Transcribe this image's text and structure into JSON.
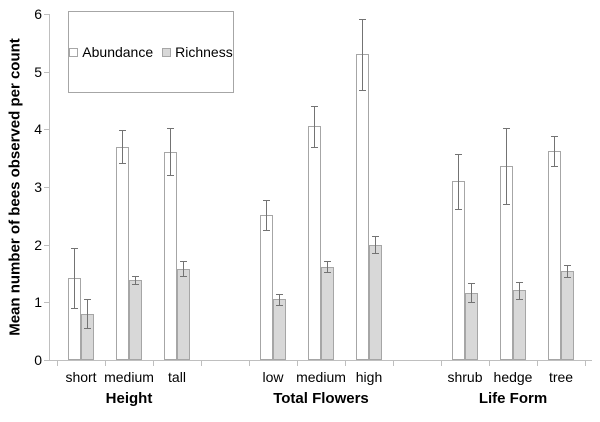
{
  "chart_data": {
    "type": "bar",
    "title": "",
    "ylabel": "Mean number of bees observed per count",
    "xlabel": "",
    "ylim": [
      0,
      6
    ],
    "yticks": [
      0,
      1,
      2,
      3,
      4,
      5,
      6
    ],
    "grid": false,
    "legend_position": "top-left",
    "series_names": [
      "Abundance",
      "Richness"
    ],
    "groups": [
      {
        "label": "Height",
        "categories": [
          "short",
          "medium",
          "tall"
        ],
        "series": [
          {
            "name": "Abundance",
            "values": [
              1.43,
              3.7,
              3.61
            ],
            "errors": [
              0.52,
              0.28,
              0.41
            ]
          },
          {
            "name": "Richness",
            "values": [
              0.8,
              1.38,
              1.58
            ],
            "errors": [
              0.25,
              0.07,
              0.13
            ]
          }
        ]
      },
      {
        "label": "Total Flowers",
        "categories": [
          "low",
          "medium",
          "high"
        ],
        "series": [
          {
            "name": "Abundance",
            "values": [
              2.52,
              4.05,
              5.3
            ],
            "errors": [
              0.26,
              0.35,
              0.62
            ]
          },
          {
            "name": "Richness",
            "values": [
              1.05,
              1.62,
              2.0
            ],
            "errors": [
              0.1,
              0.1,
              0.15
            ]
          }
        ]
      },
      {
        "label": "Life Form",
        "categories": [
          "shrub",
          "hedge",
          "tree"
        ],
        "series": [
          {
            "name": "Abundance",
            "values": [
              3.1,
              3.36,
              3.63
            ],
            "errors": [
              0.48,
              0.66,
              0.26
            ]
          },
          {
            "name": "Richness",
            "values": [
              1.17,
              1.21,
              1.54
            ],
            "errors": [
              0.16,
              0.15,
              0.1
            ]
          }
        ]
      }
    ],
    "legend": [
      {
        "label": "Abundance",
        "fill": "#ffffff"
      },
      {
        "label": "Richness",
        "fill": "#d8d8d8"
      }
    ],
    "colors": {
      "abundance_fill": "#ffffff",
      "richness_fill": "#d8d8d8",
      "bar_border": "#a6a6a6",
      "error_bar": "#737373",
      "axis": "#bfbfbf",
      "text": "#000000",
      "legend_border": "#a6a6a6"
    }
  }
}
